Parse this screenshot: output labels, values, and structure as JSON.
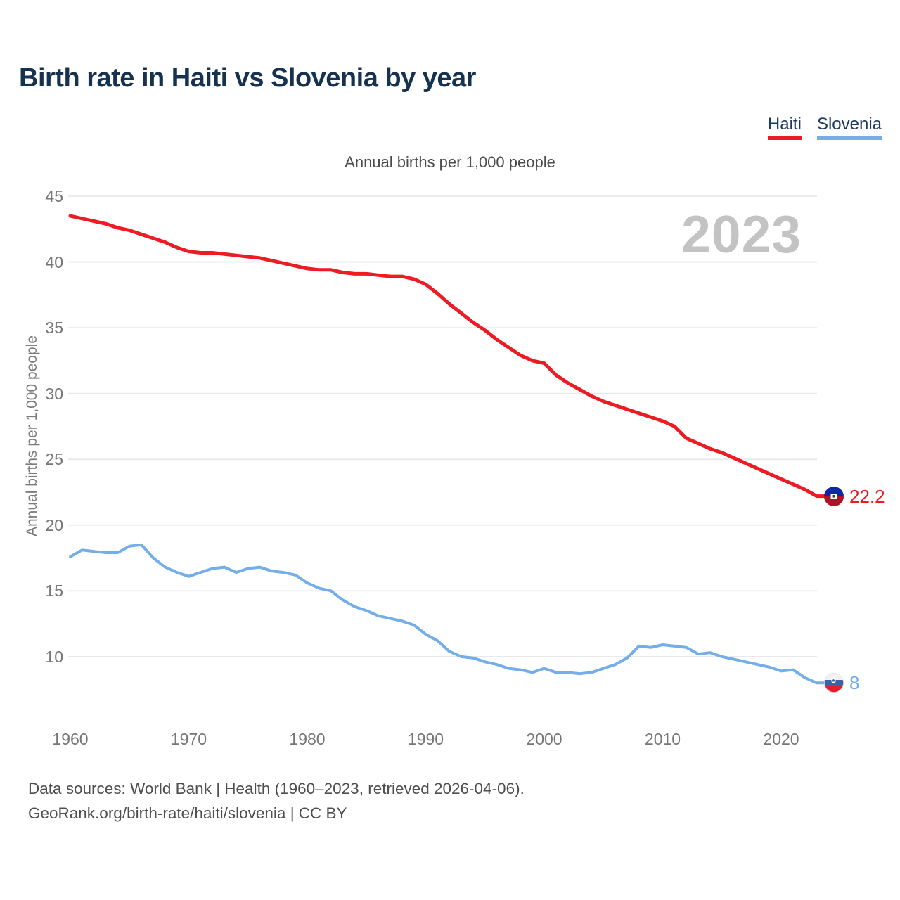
{
  "title": "Birth rate in Haiti vs Slovenia by year",
  "subtitle": "Annual births per 1,000 people",
  "watermark": "2023",
  "legend": [
    {
      "label": "Haiti",
      "color": "#ed1c24"
    },
    {
      "label": "Slovenia",
      "color": "#74aee8"
    }
  ],
  "y_axis": {
    "label": "Annual births per 1,000 people",
    "ticks": [
      45,
      40,
      35,
      30,
      25,
      20,
      15,
      10
    ]
  },
  "x_axis": {
    "ticks": [
      1960,
      1970,
      1980,
      1990,
      2000,
      2010,
      2020
    ]
  },
  "end_labels": [
    {
      "series": "Haiti",
      "value": "22.2",
      "color": "#ed1c24",
      "flag": "haiti-flag-icon"
    },
    {
      "series": "Slovenia",
      "value": "8",
      "color": "#74aee8",
      "flag": "slovenia-flag-icon"
    }
  ],
  "footer": {
    "line1": "Data sources: World Bank | Health (1960–2023, retrieved 2026-04-06).",
    "line2": "GeoRank.org/birth-rate/haiti/slovenia | CC BY"
  },
  "chart_data": {
    "type": "line",
    "title": "Birth rate in Haiti vs Slovenia by year",
    "ylabel": "Annual births per 1,000 people",
    "xlim": [
      1960,
      2023
    ],
    "ylim": [
      7,
      46
    ],
    "grid": "horizontal",
    "legend_position": "top-right",
    "x": [
      1960,
      1961,
      1962,
      1963,
      1964,
      1965,
      1966,
      1967,
      1968,
      1969,
      1970,
      1971,
      1972,
      1973,
      1974,
      1975,
      1976,
      1977,
      1978,
      1979,
      1980,
      1981,
      1982,
      1983,
      1984,
      1985,
      1986,
      1987,
      1988,
      1989,
      1990,
      1991,
      1992,
      1993,
      1994,
      1995,
      1996,
      1997,
      1998,
      1999,
      2000,
      2001,
      2002,
      2003,
      2004,
      2005,
      2006,
      2007,
      2008,
      2009,
      2010,
      2011,
      2012,
      2013,
      2014,
      2015,
      2016,
      2017,
      2018,
      2019,
      2020,
      2021,
      2022,
      2023
    ],
    "series": [
      {
        "name": "Haiti",
        "color": "#ed1c24",
        "end_value": 22.2,
        "values": [
          43.5,
          43.3,
          43.1,
          42.9,
          42.6,
          42.4,
          42.1,
          41.8,
          41.5,
          41.1,
          40.8,
          40.7,
          40.7,
          40.6,
          40.5,
          40.4,
          40.3,
          40.1,
          39.9,
          39.7,
          39.5,
          39.4,
          39.4,
          39.2,
          39.1,
          39.1,
          39.0,
          38.9,
          38.9,
          38.7,
          38.3,
          37.6,
          36.8,
          36.1,
          35.4,
          34.8,
          34.1,
          33.5,
          32.9,
          32.5,
          32.3,
          31.4,
          30.8,
          30.3,
          29.8,
          29.4,
          29.1,
          28.8,
          28.5,
          28.2,
          27.9,
          27.5,
          26.6,
          26.2,
          25.8,
          25.5,
          25.1,
          24.7,
          24.3,
          23.9,
          23.5,
          23.1,
          22.7,
          22.2
        ]
      },
      {
        "name": "Slovenia",
        "color": "#74aee8",
        "end_value": 8,
        "values": [
          17.6,
          18.1,
          18.0,
          17.9,
          17.9,
          18.4,
          18.5,
          17.5,
          16.8,
          16.4,
          16.1,
          16.4,
          16.7,
          16.8,
          16.4,
          16.7,
          16.8,
          16.5,
          16.4,
          16.2,
          15.6,
          15.2,
          15.0,
          14.3,
          13.8,
          13.5,
          13.1,
          12.9,
          12.7,
          12.4,
          11.7,
          11.2,
          10.4,
          10.0,
          9.9,
          9.6,
          9.4,
          9.1,
          9.0,
          8.8,
          9.1,
          8.8,
          8.8,
          8.7,
          8.8,
          9.1,
          9.4,
          9.9,
          10.8,
          10.7,
          10.9,
          10.8,
          10.7,
          10.2,
          10.3,
          10.0,
          9.8,
          9.6,
          9.4,
          9.2,
          8.9,
          9.0,
          8.4,
          8.0
        ]
      }
    ]
  }
}
